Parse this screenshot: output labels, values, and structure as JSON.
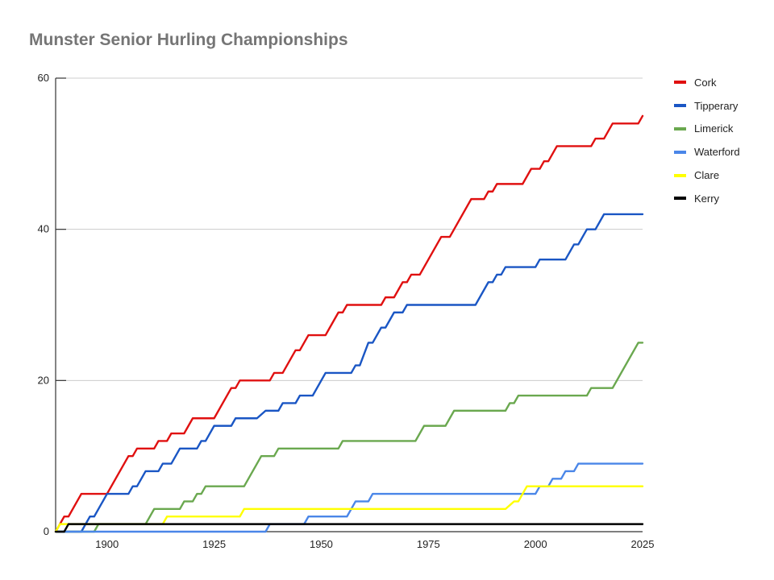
{
  "chart_data": {
    "type": "line",
    "title": "Munster Senior Hurling Championships",
    "xlabel": "",
    "ylabel": "",
    "xlim": [
      1888,
      2025
    ],
    "ylim": [
      0,
      60
    ],
    "x_ticks": [
      "1900",
      "1925",
      "1950",
      "1975",
      "2000",
      "2025"
    ],
    "y_ticks": [
      "0",
      "20",
      "40",
      "60"
    ],
    "grid": true,
    "legend_position": "right",
    "series": [
      {
        "name": "Cork",
        "color": "#e01010",
        "points": [
          [
            1888,
            0
          ],
          [
            1889,
            1
          ],
          [
            1890,
            2
          ],
          [
            1891,
            2
          ],
          [
            1893,
            4
          ],
          [
            1894,
            5
          ],
          [
            1900,
            5
          ],
          [
            1902,
            7
          ],
          [
            1905,
            10
          ],
          [
            1906,
            10
          ],
          [
            1907,
            11
          ],
          [
            1911,
            11
          ],
          [
            1912,
            12
          ],
          [
            1914,
            12
          ],
          [
            1915,
            13
          ],
          [
            1918,
            13
          ],
          [
            1919,
            14
          ],
          [
            1920,
            15
          ],
          [
            1925,
            15
          ],
          [
            1926,
            16
          ],
          [
            1929,
            19
          ],
          [
            1930,
            19
          ],
          [
            1931,
            20
          ],
          [
            1938,
            20
          ],
          [
            1939,
            21
          ],
          [
            1941,
            21
          ],
          [
            1943,
            23
          ],
          [
            1944,
            24
          ],
          [
            1945,
            24
          ],
          [
            1946,
            25
          ],
          [
            1947,
            26
          ],
          [
            1951,
            26
          ],
          [
            1952,
            27
          ],
          [
            1954,
            29
          ],
          [
            1955,
            29
          ],
          [
            1956,
            30
          ],
          [
            1964,
            30
          ],
          [
            1965,
            31
          ],
          [
            1967,
            31
          ],
          [
            1968,
            32
          ],
          [
            1969,
            33
          ],
          [
            1970,
            33
          ],
          [
            1971,
            34
          ],
          [
            1973,
            34
          ],
          [
            1975,
            36
          ],
          [
            1976,
            37
          ],
          [
            1977,
            38
          ],
          [
            1978,
            39
          ],
          [
            1980,
            39
          ],
          [
            1981,
            40
          ],
          [
            1985,
            44
          ],
          [
            1988,
            44
          ],
          [
            1989,
            45
          ],
          [
            1990,
            45
          ],
          [
            1991,
            46
          ],
          [
            1997,
            46
          ],
          [
            1999,
            48
          ],
          [
            2001,
            48
          ],
          [
            2002,
            49
          ],
          [
            2003,
            49
          ],
          [
            2005,
            51
          ],
          [
            2013,
            51
          ],
          [
            2014,
            52
          ],
          [
            2016,
            52
          ],
          [
            2018,
            54
          ],
          [
            2024,
            54
          ],
          [
            2025,
            55
          ]
        ]
      },
      {
        "name": "Tipperary",
        "color": "#1a56c4",
        "points": [
          [
            1888,
            0
          ],
          [
            1894,
            0
          ],
          [
            1895,
            1
          ],
          [
            1896,
            2
          ],
          [
            1897,
            2
          ],
          [
            1900,
            5
          ],
          [
            1905,
            5
          ],
          [
            1906,
            6
          ],
          [
            1907,
            6
          ],
          [
            1909,
            8
          ],
          [
            1912,
            8
          ],
          [
            1913,
            9
          ],
          [
            1915,
            9
          ],
          [
            1917,
            11
          ],
          [
            1921,
            11
          ],
          [
            1922,
            12
          ],
          [
            1923,
            12
          ],
          [
            1925,
            14
          ],
          [
            1929,
            14
          ],
          [
            1930,
            15
          ],
          [
            1935,
            15
          ],
          [
            1937,
            16
          ],
          [
            1940,
            16
          ],
          [
            1941,
            17
          ],
          [
            1944,
            17
          ],
          [
            1945,
            18
          ],
          [
            1948,
            18
          ],
          [
            1951,
            21
          ],
          [
            1957,
            21
          ],
          [
            1958,
            22
          ],
          [
            1959,
            22
          ],
          [
            1961,
            25
          ],
          [
            1962,
            25
          ],
          [
            1964,
            27
          ],
          [
            1965,
            27
          ],
          [
            1967,
            29
          ],
          [
            1969,
            29
          ],
          [
            1970,
            30
          ],
          [
            1986,
            30
          ],
          [
            1989,
            33
          ],
          [
            1990,
            33
          ],
          [
            1991,
            34
          ],
          [
            1992,
            34
          ],
          [
            1993,
            35
          ],
          [
            2000,
            35
          ],
          [
            2001,
            36
          ],
          [
            2007,
            36
          ],
          [
            2009,
            38
          ],
          [
            2010,
            38
          ],
          [
            2012,
            40
          ],
          [
            2014,
            40
          ],
          [
            2016,
            42
          ],
          [
            2025,
            42
          ]
        ]
      },
      {
        "name": "Limerick",
        "color": "#6aa84f",
        "points": [
          [
            1888,
            0
          ],
          [
            1897,
            0
          ],
          [
            1898,
            1
          ],
          [
            1909,
            1
          ],
          [
            1911,
            3
          ],
          [
            1917,
            3
          ],
          [
            1918,
            4
          ],
          [
            1920,
            4
          ],
          [
            1921,
            5
          ],
          [
            1922,
            5
          ],
          [
            1923,
            6
          ],
          [
            1932,
            6
          ],
          [
            1936,
            10
          ],
          [
            1939,
            10
          ],
          [
            1940,
            11
          ],
          [
            1954,
            11
          ],
          [
            1955,
            12
          ],
          [
            1972,
            12
          ],
          [
            1974,
            14
          ],
          [
            1979,
            14
          ],
          [
            1981,
            16
          ],
          [
            1993,
            16
          ],
          [
            1994,
            17
          ],
          [
            1995,
            17
          ],
          [
            1996,
            18
          ],
          [
            2012,
            18
          ],
          [
            2013,
            19
          ],
          [
            2018,
            19
          ],
          [
            2024,
            25
          ],
          [
            2025,
            25
          ]
        ]
      },
      {
        "name": "Waterford",
        "color": "#4a86e8",
        "points": [
          [
            1888,
            0
          ],
          [
            1937,
            0
          ],
          [
            1938,
            1
          ],
          [
            1946,
            1
          ],
          [
            1947,
            2
          ],
          [
            1956,
            2
          ],
          [
            1958,
            4
          ],
          [
            1961,
            4
          ],
          [
            1962,
            5
          ],
          [
            2000,
            5
          ],
          [
            2001,
            6
          ],
          [
            2003,
            6
          ],
          [
            2004,
            7
          ],
          [
            2006,
            7
          ],
          [
            2007,
            8
          ],
          [
            2009,
            8
          ],
          [
            2010,
            9
          ],
          [
            2025,
            9
          ]
        ]
      },
      {
        "name": "Clare",
        "color": "#ffff00",
        "points": [
          [
            1888,
            0
          ],
          [
            1889,
            1
          ],
          [
            1913,
            1
          ],
          [
            1914,
            2
          ],
          [
            1931,
            2
          ],
          [
            1932,
            3
          ],
          [
            1993,
            3
          ],
          [
            1995,
            4
          ],
          [
            1996,
            4
          ],
          [
            1997,
            5
          ],
          [
            1998,
            6
          ],
          [
            2025,
            6
          ]
        ]
      },
      {
        "name": "Kerry",
        "color": "#000000",
        "points": [
          [
            1888,
            0
          ],
          [
            1890,
            0
          ],
          [
            1891,
            1
          ],
          [
            2025,
            1
          ]
        ]
      }
    ]
  }
}
